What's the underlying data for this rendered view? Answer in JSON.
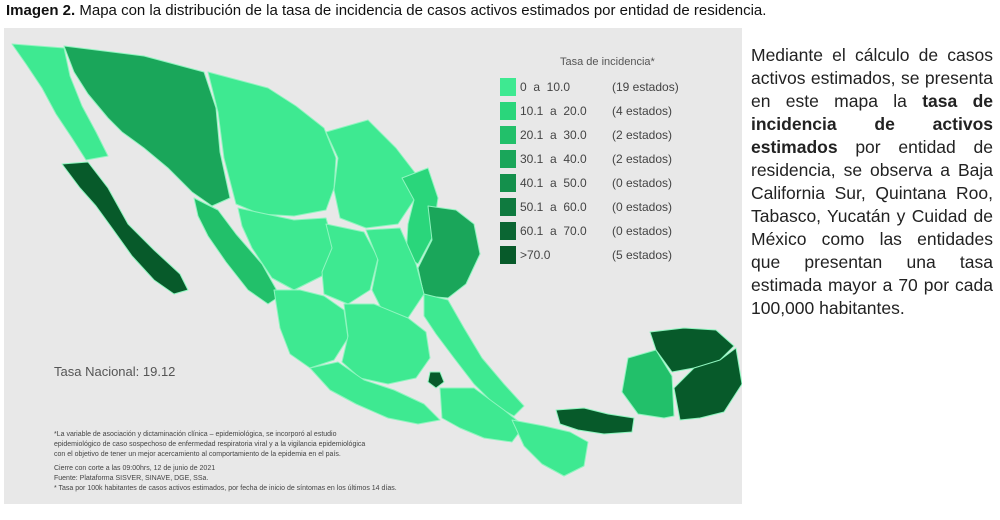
{
  "caption": {
    "label": "Imagen 2.",
    "text": "Mapa con la distribución de la tasa de incidencia de casos activos estimados por entidad de residencia."
  },
  "legend": {
    "title": "Tasa de incidencia*",
    "items": [
      {
        "range": "0  a  10.0",
        "count": "(19 estados)",
        "color": "#3ee991"
      },
      {
        "range": "10.1  a  20.0",
        "count": "(4 estados)",
        "color": "#2ad67b"
      },
      {
        "range": "20.1  a  30.0",
        "count": "(2 estados)",
        "color": "#22c06a"
      },
      {
        "range": "30.1  a  40.0",
        "count": "(2 estados)",
        "color": "#1aa65a"
      },
      {
        "range": "40.1  a  50.0",
        "count": "(0 estados)",
        "color": "#14904c"
      },
      {
        "range": "50.1  a  60.0",
        "count": "(0 estados)",
        "color": "#0f7a3f"
      },
      {
        "range": "60.1  a  70.0",
        "count": "(0 estados)",
        "color": "#0b6633"
      },
      {
        "range": ">70.0",
        "count": "(5 estados)",
        "color": "#075a2a"
      }
    ]
  },
  "national_rate": "Tasa Nacional: 19.12",
  "notes": [
    "*La variable de asociación y dictaminación clínica – epidemiológica, se incorporó al estudio",
    "epidemiológico de caso sospechoso de enfermedad respiratoria viral y a la vigilancia epidemiológica",
    "con el objetivo de tener un mejor acercamiento al comportamiento de la epidemia en el país.",
    "Cierre con corte a las 09:00hrs, 12 de junio de 2021",
    "Fuente: Plataforma SISVER, SINAVE, DGE, SSa.",
    "* Tasa por 100k habitantes de casos activos estimados, por fecha de inicio de síntomas en los últimos 14 días."
  ],
  "side_text": {
    "p1": "Mediante el cálculo de casos activos estimados, se presenta en este mapa la",
    "bold": "tasa de incidencia de activos estimados",
    "p2": "por entidad de residencia, se observa a Baja California Sur, Quintana Roo, Tabasco, Yucatán y Cuidad de México como las entidades que presentan una tasa estimada mayor a 70 por cada 100,000 habitantes."
  },
  "map_colors": {
    "light": "#3ee991",
    "mid1": "#2ad67b",
    "mid2": "#22c06a",
    "mid3": "#1aa65a",
    "dark": "#075a2a",
    "border": "#8ff5bf"
  }
}
